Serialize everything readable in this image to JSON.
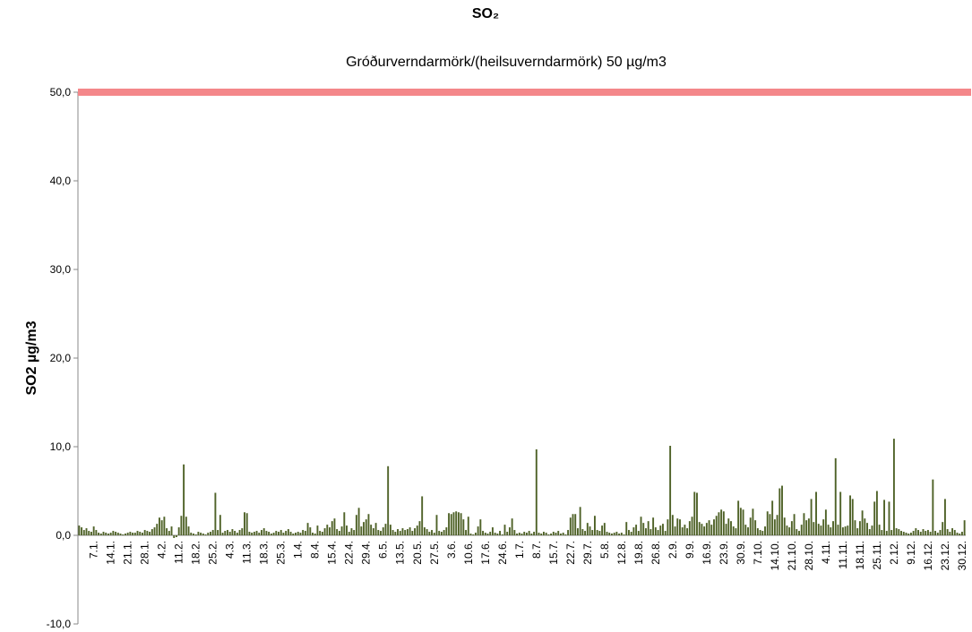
{
  "chart_data": {
    "type": "bar",
    "title": "SO₂",
    "subtitle": "Gróðurverndarmörk/(heilsuverndarmörk) 50 µg/m3",
    "y_label": "SO2 µg/m3",
    "color": "#4f6228",
    "reference_line": {
      "value": 50,
      "color": "#f4878a"
    },
    "ylim": [
      -10,
      50
    ],
    "yticks": [
      {
        "value": -10,
        "label": "-10,0"
      },
      {
        "value": 0,
        "label": "0,0"
      },
      {
        "value": 10,
        "label": "10,0"
      },
      {
        "value": 20,
        "label": "20,0"
      },
      {
        "value": 30,
        "label": "30,0"
      },
      {
        "value": 40,
        "label": "40,0"
      },
      {
        "value": 50,
        "label": "50,0"
      }
    ],
    "categories": [
      null,
      null,
      null,
      null,
      null,
      null,
      "7.1.",
      null,
      null,
      null,
      null,
      null,
      null,
      "14.1.",
      null,
      null,
      null,
      null,
      null,
      null,
      "21.1.",
      null,
      null,
      null,
      null,
      null,
      null,
      "28.1.",
      null,
      null,
      null,
      null,
      null,
      null,
      "4.2.",
      null,
      null,
      null,
      null,
      null,
      null,
      "11.2.",
      null,
      null,
      null,
      null,
      null,
      null,
      "18.2.",
      null,
      null,
      null,
      null,
      null,
      null,
      "25.2.",
      null,
      null,
      null,
      null,
      null,
      null,
      "4.3.",
      null,
      null,
      null,
      null,
      null,
      null,
      "11.3.",
      null,
      null,
      null,
      null,
      null,
      null,
      "18.3.",
      null,
      null,
      null,
      null,
      null,
      null,
      "25.3.",
      null,
      null,
      null,
      null,
      null,
      null,
      "1.4.",
      null,
      null,
      null,
      null,
      null,
      null,
      "8.4.",
      null,
      null,
      null,
      null,
      null,
      null,
      "15.4.",
      null,
      null,
      null,
      null,
      null,
      null,
      "22.4.",
      null,
      null,
      null,
      null,
      null,
      null,
      "29.4.",
      null,
      null,
      null,
      null,
      null,
      null,
      "6.5.",
      null,
      null,
      null,
      null,
      null,
      null,
      "13.5.",
      null,
      null,
      null,
      null,
      null,
      null,
      "20.5.",
      null,
      null,
      null,
      null,
      null,
      null,
      "27.5.",
      null,
      null,
      null,
      null,
      null,
      null,
      "3.6.",
      null,
      null,
      null,
      null,
      null,
      null,
      "10.6.",
      null,
      null,
      null,
      null,
      null,
      null,
      "17.6.",
      null,
      null,
      null,
      null,
      null,
      null,
      "24.6.",
      null,
      null,
      null,
      null,
      null,
      null,
      "1.7.",
      null,
      null,
      null,
      null,
      null,
      null,
      "8.7.",
      null,
      null,
      null,
      null,
      null,
      null,
      "15.7.",
      null,
      null,
      null,
      null,
      null,
      null,
      "22.7.",
      null,
      null,
      null,
      null,
      null,
      null,
      "29.7.",
      null,
      null,
      null,
      null,
      null,
      null,
      "5.8.",
      null,
      null,
      null,
      null,
      null,
      null,
      "12.8.",
      null,
      null,
      null,
      null,
      null,
      null,
      "19.8.",
      null,
      null,
      null,
      null,
      null,
      null,
      "26.8.",
      null,
      null,
      null,
      null,
      null,
      null,
      "2.9.",
      null,
      null,
      null,
      null,
      null,
      null,
      "9.9.",
      null,
      null,
      null,
      null,
      null,
      null,
      "16.9.",
      null,
      null,
      null,
      null,
      null,
      null,
      "23.9.",
      null,
      null,
      null,
      null,
      null,
      null,
      "30.9.",
      null,
      null,
      null,
      null,
      null,
      null,
      "7.10.",
      null,
      null,
      null,
      null,
      null,
      null,
      "14.10.",
      null,
      null,
      null,
      null,
      null,
      null,
      "21.10.",
      null,
      null,
      null,
      null,
      null,
      null,
      "28.10.",
      null,
      null,
      null,
      null,
      null,
      null,
      "4.11.",
      null,
      null,
      null,
      null,
      null,
      null,
      "11.11.",
      null,
      null,
      null,
      null,
      null,
      null,
      "18.11.",
      null,
      null,
      null,
      null,
      null,
      null,
      "25.11.",
      null,
      null,
      null,
      null,
      null,
      null,
      "2.12.",
      null,
      null,
      null,
      null,
      null,
      null,
      "9.12.",
      null,
      null,
      null,
      null,
      null,
      null,
      "16.12.",
      null,
      null,
      null,
      null,
      null,
      null,
      "23.12.",
      null,
      null,
      null,
      null,
      null,
      null,
      "30.12.",
      null
    ],
    "values": [
      1.1,
      0.9,
      0.6,
      0.8,
      0.5,
      0.4,
      1.0,
      0.6,
      0.3,
      0.2,
      0.4,
      0.3,
      0.2,
      0.3,
      0.5,
      0.4,
      0.3,
      0.2,
      0.1,
      0.2,
      0.3,
      0.4,
      0.3,
      0.3,
      0.5,
      0.4,
      0.3,
      0.6,
      0.5,
      0.4,
      0.7,
      0.9,
      1.3,
      2.0,
      1.7,
      2.1,
      0.8,
      0.5,
      1.0,
      -0.3,
      -0.2,
      0.9,
      2.2,
      8.0,
      2.1,
      1.0,
      0.3,
      0.2,
      0.1,
      0.4,
      0.3,
      0.2,
      0.1,
      0.3,
      0.4,
      0.6,
      4.8,
      0.6,
      2.3,
      0.3,
      0.5,
      0.6,
      0.4,
      0.7,
      0.5,
      0.3,
      0.6,
      0.8,
      2.6,
      2.5,
      0.4,
      0.3,
      0.4,
      0.5,
      0.3,
      0.6,
      0.8,
      0.5,
      0.4,
      0.2,
      0.3,
      0.5,
      0.4,
      0.6,
      0.3,
      0.5,
      0.7,
      0.4,
      0.2,
      0.3,
      0.4,
      0.3,
      0.6,
      0.5,
      1.4,
      0.9,
      0.3,
      0.2,
      1.1,
      0.5,
      0.4,
      0.8,
      1.2,
      0.9,
      1.6,
      1.9,
      0.7,
      0.5,
      1.0,
      2.6,
      1.1,
      0.4,
      0.8,
      0.6,
      2.3,
      3.1,
      1.0,
      1.5,
      1.8,
      2.4,
      1.2,
      0.8,
      1.4,
      0.6,
      0.5,
      0.9,
      1.3,
      7.8,
      1.2,
      0.6,
      0.4,
      0.7,
      0.5,
      0.8,
      0.6,
      0.7,
      0.9,
      0.5,
      0.8,
      1.1,
      1.6,
      4.4,
      0.9,
      0.7,
      0.4,
      0.6,
      0.3,
      2.3,
      0.5,
      0.4,
      0.6,
      0.9,
      2.5,
      2.4,
      2.6,
      2.7,
      2.6,
      2.5,
      1.8,
      0.6,
      2.1,
      0.2,
      0.1,
      0.3,
      1.0,
      1.8,
      0.5,
      0.3,
      0.2,
      0.4,
      0.9,
      0.3,
      0.2,
      0.5,
      0.1,
      1.2,
      0.4,
      0.9,
      1.9,
      0.6,
      0.2,
      0.3,
      0.2,
      0.4,
      0.3,
      0.5,
      0.2,
      0.4,
      9.7,
      0.3,
      0.2,
      0.4,
      0.3,
      0.1,
      0.2,
      0.4,
      0.3,
      0.5,
      0.2,
      0.3,
      0.1,
      0.6,
      2.0,
      2.4,
      2.4,
      0.8,
      3.2,
      0.7,
      0.5,
      1.4,
      1.0,
      0.6,
      2.2,
      0.6,
      0.5,
      1.1,
      1.4,
      0.4,
      0.3,
      0.2,
      0.3,
      0.4,
      0.2,
      0.3,
      0.1,
      1.5,
      0.6,
      0.4,
      0.9,
      1.2,
      0.5,
      2.1,
      1.4,
      0.8,
      1.6,
      0.7,
      2.0,
      0.9,
      0.6,
      1.1,
      1.3,
      0.5,
      1.8,
      10.1,
      2.3,
      1.0,
      1.9,
      1.8,
      0.9,
      1.2,
      0.8,
      1.6,
      2.1,
      4.9,
      4.8,
      1.5,
      1.3,
      1.0,
      1.4,
      1.7,
      1.2,
      1.8,
      2.2,
      2.6,
      2.9,
      2.7,
      1.3,
      1.9,
      1.6,
      1.0,
      0.8,
      3.9,
      3.1,
      2.9,
      1.2,
      0.9,
      2.0,
      3.0,
      1.7,
      0.8,
      0.6,
      0.5,
      1.0,
      2.7,
      2.4,
      3.9,
      1.8,
      2.3,
      5.3,
      5.6,
      2.0,
      1.1,
      0.9,
      1.6,
      2.4,
      0.7,
      0.5,
      1.2,
      2.5,
      1.7,
      1.9,
      4.1,
      1.5,
      4.9,
      1.3,
      1.1,
      1.8,
      2.9,
      1.2,
      0.9,
      1.6,
      8.7,
      1.2,
      4.9,
      0.9,
      1.0,
      1.1,
      4.5,
      4.1,
      1.7,
      0.8,
      1.6,
      2.8,
      1.9,
      1.4,
      0.7,
      1.1,
      3.8,
      5.0,
      1.2,
      0.6,
      4.0,
      0.5,
      3.8,
      0.6,
      10.9,
      0.8,
      0.7,
      0.5,
      0.4,
      0.3,
      0.2,
      0.3,
      0.5,
      0.8,
      0.6,
      0.4,
      0.7,
      0.5,
      0.6,
      0.4,
      6.3,
      0.5,
      0.3,
      0.6,
      1.5,
      4.1,
      0.7,
      0.4,
      0.8,
      0.6,
      0.3,
      0.2,
      0.4,
      1.7
    ]
  }
}
